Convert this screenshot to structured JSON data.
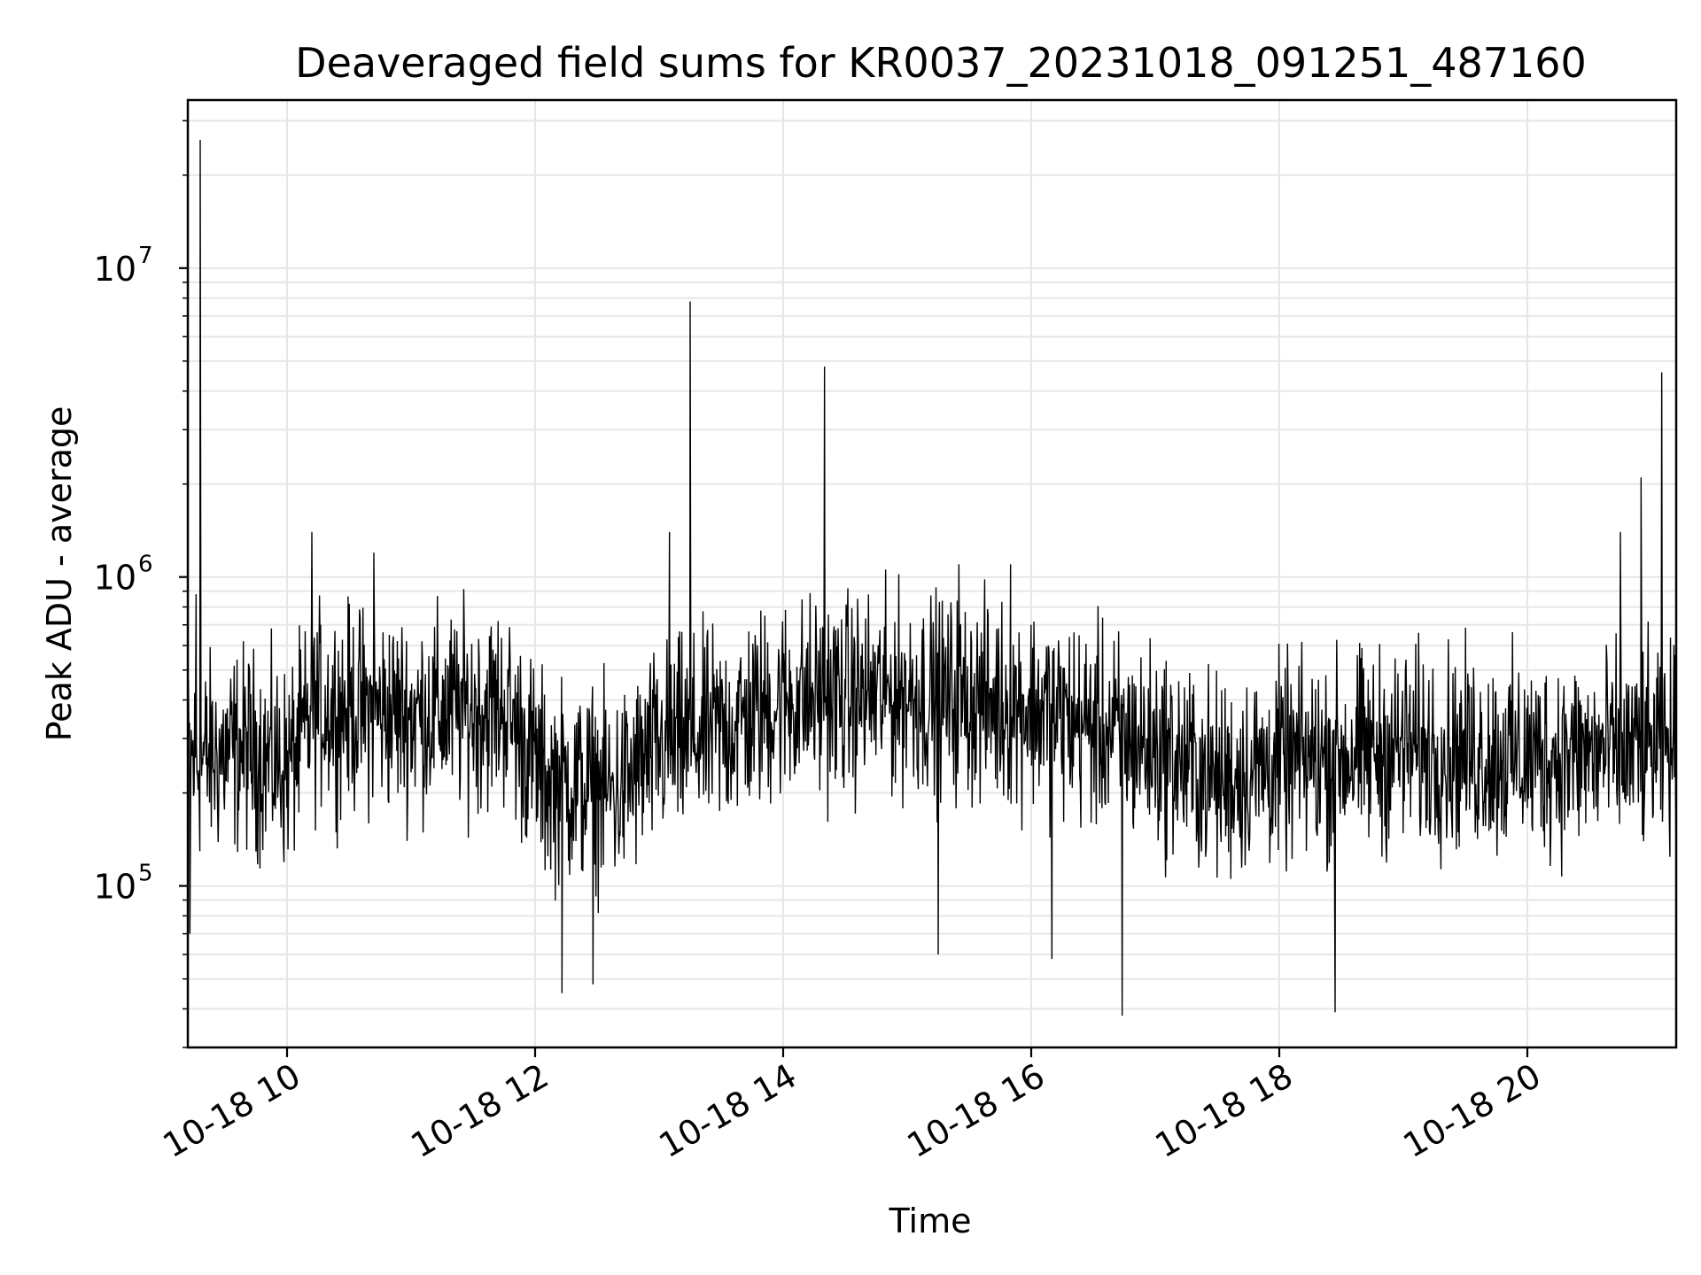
{
  "chart_data": {
    "type": "line",
    "title": "Deaveraged field sums for KR0037_20231018_091251_487160",
    "xlabel": "Time",
    "ylabel": "Peak ADU - average",
    "yscale": "log",
    "grid": true,
    "line_color": "#000000",
    "grid_color": "#e6e6e6",
    "x_range": [
      "2023-10-18 09:12",
      "2023-10-18 21:12"
    ],
    "y_range": [
      30000,
      35000000
    ],
    "x_ticks": [
      {
        "value": "2023-10-18 10:00",
        "label": "10-18 10"
      },
      {
        "value": "2023-10-18 12:00",
        "label": "10-18 12"
      },
      {
        "value": "2023-10-18 14:00",
        "label": "10-18 14"
      },
      {
        "value": "2023-10-18 16:00",
        "label": "10-18 16"
      },
      {
        "value": "2023-10-18 18:00",
        "label": "10-18 18"
      },
      {
        "value": "2023-10-18 20:00",
        "label": "10-18 20"
      }
    ],
    "y_ticks": [
      {
        "value": 100000,
        "base": "10",
        "exp": "5"
      },
      {
        "value": 1000000,
        "base": "10",
        "exp": "6"
      },
      {
        "value": 10000000,
        "base": "10",
        "exp": "7"
      }
    ],
    "series": [
      {
        "trend": [
          [
            "2023-10-18 09:12",
            250000
          ],
          [
            "2023-10-18 09:40",
            280000
          ],
          [
            "2023-10-18 10:00",
            240000
          ],
          [
            "2023-10-18 10:15",
            380000
          ],
          [
            "2023-10-18 11:00",
            360000
          ],
          [
            "2023-10-18 11:45",
            380000
          ],
          [
            "2023-10-18 12:05",
            220000
          ],
          [
            "2023-10-18 12:40",
            200000
          ],
          [
            "2023-10-18 13:00",
            280000
          ],
          [
            "2023-10-18 13:30",
            320000
          ],
          [
            "2023-10-18 14:00",
            400000
          ],
          [
            "2023-10-18 15:00",
            420000
          ],
          [
            "2023-10-18 16:00",
            380000
          ],
          [
            "2023-10-18 17:00",
            280000
          ],
          [
            "2023-10-18 17:30",
            220000
          ],
          [
            "2023-10-18 18:00",
            250000
          ],
          [
            "2023-10-18 19:00",
            280000
          ],
          [
            "2023-10-18 20:00",
            260000
          ],
          [
            "2023-10-18 21:12",
            280000
          ]
        ],
        "peaks": [
          [
            "2023-10-18 09:18",
            26000000
          ],
          [
            "2023-10-18 09:16",
            880000
          ],
          [
            "2023-10-18 10:12",
            1400000
          ],
          [
            "2023-10-18 10:42",
            1200000
          ],
          [
            "2023-10-18 13:05",
            1400000
          ],
          [
            "2023-10-18 13:15",
            7800000
          ],
          [
            "2023-10-18 14:20",
            4800000
          ],
          [
            "2023-10-18 15:25",
            1100000
          ],
          [
            "2023-10-18 15:50",
            1100000
          ],
          [
            "2023-10-18 20:45",
            1400000
          ],
          [
            "2023-10-18 20:55",
            2100000
          ],
          [
            "2023-10-18 21:05",
            4600000
          ]
        ],
        "dips": [
          [
            "2023-10-18 09:13",
            70000
          ],
          [
            "2023-10-18 12:13",
            45000
          ],
          [
            "2023-10-18 12:28",
            48000
          ],
          [
            "2023-10-18 15:15",
            60000
          ],
          [
            "2023-10-18 16:10",
            58000
          ],
          [
            "2023-10-18 16:44",
            38000
          ],
          [
            "2023-10-18 18:27",
            39000
          ]
        ]
      }
    ]
  }
}
